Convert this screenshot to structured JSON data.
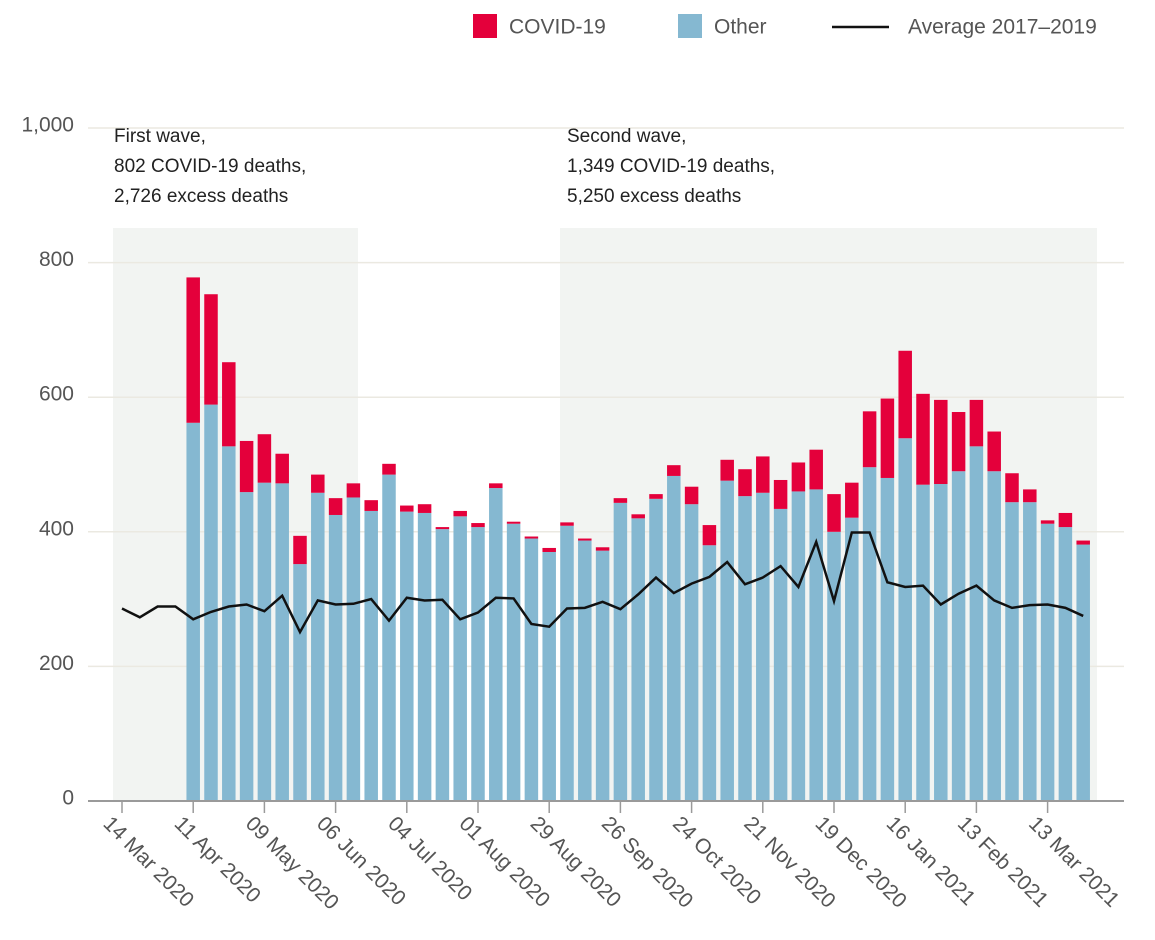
{
  "chart_data": {
    "type": "bar",
    "stacked": true,
    "categories": [
      "14 Mar 2020",
      null,
      null,
      null,
      "11 Apr 2020",
      null,
      null,
      null,
      "09 May 2020",
      null,
      null,
      null,
      "06 Jun 2020",
      null,
      null,
      null,
      "04 Jul 2020",
      null,
      null,
      null,
      "01 Aug 2020",
      null,
      null,
      null,
      "29 Aug 2020",
      null,
      null,
      null,
      "26 Sep 2020",
      null,
      null,
      null,
      "24 Oct 2020",
      null,
      null,
      null,
      "21 Nov 2020",
      null,
      null,
      null,
      "19 Dec 2020",
      null,
      null,
      null,
      "16 Jan 2021",
      null,
      null,
      null,
      "13 Feb 2021",
      null,
      null,
      null,
      "13 Mar 2021",
      null,
      null
    ],
    "series": [
      {
        "name": "COVID-19",
        "color": "#e4003b",
        "values": [
          null,
          null,
          null,
          null,
          216,
          164,
          125,
          76,
          72,
          44,
          42,
          27,
          25,
          21,
          16,
          16,
          9,
          13,
          3,
          8,
          6,
          7,
          3,
          3,
          6,
          5,
          3,
          5,
          7,
          6,
          7,
          16,
          26,
          30,
          31,
          40,
          54,
          43,
          43,
          59,
          56,
          52,
          83,
          118,
          130,
          135,
          125,
          88,
          69,
          59,
          43,
          19,
          5,
          21,
          6
        ]
      },
      {
        "name": "Other",
        "color": "#85b8d1",
        "values": [
          null,
          null,
          null,
          null,
          562,
          589,
          527,
          459,
          473,
          472,
          352,
          458,
          425,
          451,
          431,
          485,
          430,
          428,
          404,
          423,
          407,
          465,
          412,
          390,
          370,
          409,
          387,
          372,
          443,
          420,
          449,
          483,
          441,
          380,
          476,
          453,
          458,
          434,
          460,
          463,
          400,
          421,
          496,
          480,
          539,
          470,
          471,
          490,
          527,
          490,
          444,
          444,
          412,
          407,
          381
        ]
      },
      {
        "name": "Average 2017–2019",
        "type": "line",
        "color": "#111111",
        "values": [
          286,
          273,
          289,
          289,
          270,
          281,
          289,
          292,
          282,
          305,
          251,
          298,
          292,
          293,
          300,
          268,
          302,
          298,
          299,
          270,
          280,
          302,
          301,
          263,
          259,
          286,
          287,
          296,
          285,
          307,
          332,
          309,
          323,
          333,
          355,
          322,
          332,
          349,
          318,
          385,
          297,
          399,
          399,
          325,
          318,
          320,
          292,
          308,
          320,
          298,
          287,
          291,
          292,
          287,
          275
        ]
      }
    ],
    "annotations": [
      {
        "lines": [
          "First wave,",
          "802 COVID-19 deaths,",
          "2,726 excess deaths"
        ]
      },
      {
        "lines": [
          "Second wave,",
          "1,349 COVID-19 deaths,",
          "5,250 excess deaths"
        ]
      }
    ],
    "ylim": [
      0,
      1000
    ],
    "yticks": [
      0,
      200,
      400,
      600,
      800,
      {
        "value": 1000,
        "label": "1,000"
      }
    ],
    "grid": true,
    "legend": "top-right"
  }
}
